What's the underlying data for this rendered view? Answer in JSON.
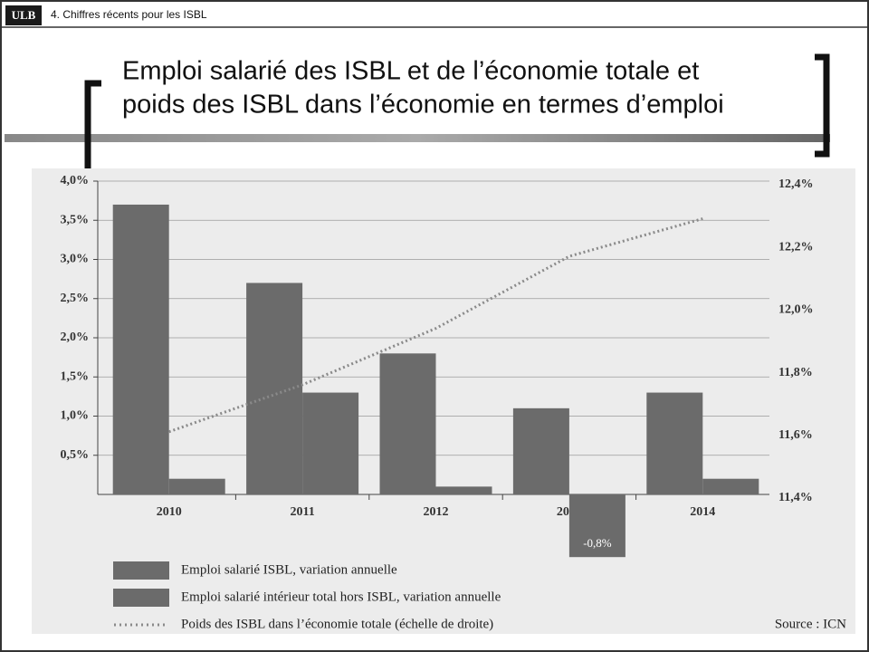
{
  "header": {
    "logo": "ULB",
    "section": "4. Chiffres récents pour les ISBL"
  },
  "chart_data": {
    "type": "bar",
    "title": [
      "Emploi salarié des ISBL et de l’économie totale et",
      "poids des ISBL dans l’économie en termes d’emploi"
    ],
    "categories": [
      "2010",
      "2011",
      "2012",
      "2013",
      "2014"
    ],
    "series": [
      {
        "name": "Emploi salarié ISBL, variation annuelle",
        "color": "#6b6b6b",
        "values": [
          3.7,
          2.7,
          1.8,
          1.1,
          1.3
        ]
      },
      {
        "name": "Emploi salarié intérieur total hors ISBL, variation annuelle",
        "color": "#6b6b6b",
        "values": [
          0.2,
          1.3,
          0.1,
          -0.8,
          0.2
        ],
        "value_labels": [
          null,
          null,
          null,
          "-0,8%",
          null
        ]
      },
      {
        "name": "Poids des ISBL dans l’économie totale (échelle de droite)",
        "color": "#8a8a8a",
        "type": "line",
        "axis": "y2",
        "values": [
          11.6,
          11.75,
          11.93,
          12.16,
          12.28
        ]
      }
    ],
    "ylim": [
      0,
      4
    ],
    "yticks": [
      {
        "value": 0.5,
        "label": "0,5%"
      },
      {
        "value": 1,
        "label": "1,0%"
      },
      {
        "value": 1.5,
        "label": "1,5%"
      },
      {
        "value": 2,
        "label": "2,0%"
      },
      {
        "value": 2.5,
        "label": "2,5%"
      },
      {
        "value": 3,
        "label": "3,0%"
      },
      {
        "value": 3.5,
        "label": "3,5%"
      },
      {
        "value": 4,
        "label": "4,0%"
      }
    ],
    "y2lim": [
      11.4,
      12.4
    ],
    "y2ticks": [
      {
        "value": 11.4,
        "label": "11,4%"
      },
      {
        "value": 11.6,
        "label": "11,6%"
      },
      {
        "value": 11.8,
        "label": "11,8%"
      },
      {
        "value": 12,
        "label": "12,0%"
      },
      {
        "value": 12.2,
        "label": "12,2%"
      },
      {
        "value": 12.4,
        "label": "12,4%"
      }
    ],
    "grid": true,
    "source": "Source : ICN"
  }
}
